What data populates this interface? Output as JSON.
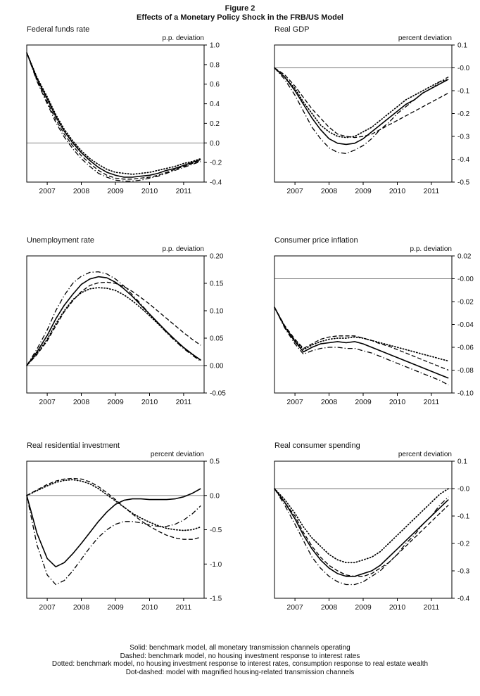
{
  "figure": {
    "title_line1": "Figure 2",
    "title_line2": "Effects of a Monetary Policy Shock in the FRB/US Model"
  },
  "legend": {
    "lines": [
      "Solid: benchmark model, all monetary transmission channels operating",
      "Dashed: benchmark model, no housing investment response to interest rates",
      "Dotted: benchmark model, no housing investment response to interest rates, consumption response to real estate wealth",
      "Dot-dashed: model with magnified housing-related transmission channels"
    ]
  },
  "chart_data": [
    {
      "type": "line",
      "title": "Federal funds rate",
      "ylabel": "p.p. deviation",
      "xlabel": "",
      "xlim": [
        2006.4,
        2011.6
      ],
      "ylim": [
        -0.4,
        1.0
      ],
      "yticks": [
        1.0,
        0.8,
        0.6,
        0.4,
        0.2,
        0.0,
        -0.2,
        -0.4
      ],
      "ytick_labels": [
        "1.0",
        "0.8",
        "0.6",
        "0.4",
        "0.2",
        "0.0",
        "-0.2",
        "-0.4"
      ],
      "xticks": [
        2007,
        2008,
        2009,
        2010,
        2011
      ],
      "xtick_labels": [
        "2007",
        "2008",
        "2009",
        "2010",
        "2011"
      ],
      "zero_line": 0.0,
      "x": [
        2006.4,
        2006.7,
        2007,
        2007.25,
        2007.5,
        2007.75,
        2008,
        2008.25,
        2008.5,
        2008.75,
        2009,
        2009.25,
        2009.5,
        2009.75,
        2010,
        2010.25,
        2010.5,
        2010.75,
        2011,
        2011.25,
        2011.5
      ],
      "series": [
        {
          "name": "solid",
          "style": "solid",
          "values": [
            0.92,
            0.66,
            0.45,
            0.27,
            0.12,
            0.0,
            -0.1,
            -0.18,
            -0.25,
            -0.3,
            -0.33,
            -0.35,
            -0.35,
            -0.34,
            -0.33,
            -0.31,
            -0.28,
            -0.26,
            -0.23,
            -0.2,
            -0.17
          ]
        },
        {
          "name": "dashed",
          "style": "dashed",
          "values": [
            0.92,
            0.64,
            0.42,
            0.24,
            0.09,
            -0.03,
            -0.13,
            -0.21,
            -0.28,
            -0.33,
            -0.36,
            -0.37,
            -0.37,
            -0.36,
            -0.35,
            -0.33,
            -0.3,
            -0.27,
            -0.24,
            -0.21,
            -0.18
          ]
        },
        {
          "name": "dotted",
          "style": "dotted",
          "values": [
            0.92,
            0.67,
            0.47,
            0.29,
            0.14,
            0.02,
            -0.08,
            -0.16,
            -0.22,
            -0.27,
            -0.3,
            -0.31,
            -0.32,
            -0.31,
            -0.3,
            -0.28,
            -0.26,
            -0.24,
            -0.21,
            -0.19,
            -0.16
          ]
        },
        {
          "name": "dot-dashed",
          "style": "dot-dashed",
          "values": [
            0.92,
            0.63,
            0.4,
            0.21,
            0.06,
            -0.06,
            -0.16,
            -0.24,
            -0.31,
            -0.35,
            -0.38,
            -0.39,
            -0.39,
            -0.38,
            -0.36,
            -0.34,
            -0.31,
            -0.28,
            -0.25,
            -0.22,
            -0.19
          ]
        }
      ]
    },
    {
      "type": "line",
      "title": "Real GDP",
      "ylabel": "percent deviation",
      "xlabel": "",
      "xlim": [
        2006.4,
        2011.6
      ],
      "ylim": [
        -0.5,
        0.1
      ],
      "yticks": [
        0.1,
        0.0,
        -0.1,
        -0.2,
        -0.3,
        -0.4,
        -0.5
      ],
      "ytick_labels": [
        "0.1",
        "-0.0",
        "-0.1",
        "-0.2",
        "-0.3",
        "-0.4",
        "-0.5"
      ],
      "xticks": [
        2007,
        2008,
        2009,
        2010,
        2011
      ],
      "xtick_labels": [
        "2007",
        "2008",
        "2009",
        "2010",
        "2011"
      ],
      "zero_line": 0.0,
      "x": [
        2006.4,
        2006.7,
        2007,
        2007.25,
        2007.5,
        2007.75,
        2008,
        2008.25,
        2008.5,
        2008.75,
        2009,
        2009.25,
        2009.5,
        2009.75,
        2010,
        2010.25,
        2010.5,
        2010.75,
        2011,
        2011.25,
        2011.5
      ],
      "series": [
        {
          "name": "solid",
          "style": "solid",
          "values": [
            0,
            -0.04,
            -0.1,
            -0.16,
            -0.22,
            -0.27,
            -0.31,
            -0.33,
            -0.335,
            -0.33,
            -0.31,
            -0.28,
            -0.25,
            -0.22,
            -0.19,
            -0.16,
            -0.14,
            -0.11,
            -0.09,
            -0.07,
            -0.05
          ]
        },
        {
          "name": "dashed",
          "style": "dashed",
          "values": [
            0,
            -0.03,
            -0.08,
            -0.13,
            -0.18,
            -0.22,
            -0.26,
            -0.29,
            -0.3,
            -0.305,
            -0.3,
            -0.29,
            -0.27,
            -0.25,
            -0.23,
            -0.21,
            -0.19,
            -0.17,
            -0.15,
            -0.13,
            -0.11
          ]
        },
        {
          "name": "dotted",
          "style": "dotted",
          "values": [
            0,
            -0.04,
            -0.09,
            -0.15,
            -0.2,
            -0.25,
            -0.28,
            -0.3,
            -0.305,
            -0.3,
            -0.28,
            -0.26,
            -0.23,
            -0.2,
            -0.17,
            -0.14,
            -0.12,
            -0.1,
            -0.08,
            -0.06,
            -0.05
          ]
        },
        {
          "name": "dot-dashed",
          "style": "dot-dashed",
          "values": [
            0,
            -0.05,
            -0.12,
            -0.19,
            -0.26,
            -0.31,
            -0.35,
            -0.37,
            -0.375,
            -0.36,
            -0.34,
            -0.31,
            -0.27,
            -0.24,
            -0.2,
            -0.17,
            -0.14,
            -0.11,
            -0.09,
            -0.06,
            -0.04
          ]
        }
      ]
    },
    {
      "type": "line",
      "title": "Unemployment rate",
      "ylabel": "p.p. deviation",
      "xlabel": "",
      "xlim": [
        2006.4,
        2011.6
      ],
      "ylim": [
        -0.05,
        0.2
      ],
      "yticks": [
        0.2,
        0.15,
        0.1,
        0.05,
        0.0,
        -0.05
      ],
      "ytick_labels": [
        "0.20",
        "0.15",
        "0.10",
        "0.05",
        "0.00",
        "-0.05"
      ],
      "xticks": [
        2007,
        2008,
        2009,
        2010,
        2011
      ],
      "xtick_labels": [
        "2007",
        "2008",
        "2009",
        "2010",
        "2011"
      ],
      "zero_line": 0.0,
      "x": [
        2006.4,
        2006.7,
        2007,
        2007.25,
        2007.5,
        2007.75,
        2008,
        2008.25,
        2008.5,
        2008.75,
        2009,
        2009.25,
        2009.5,
        2009.75,
        2010,
        2010.25,
        2010.5,
        2010.75,
        2011,
        2011.25,
        2011.5
      ],
      "series": [
        {
          "name": "solid",
          "style": "solid",
          "values": [
            0,
            0.025,
            0.055,
            0.085,
            0.11,
            0.13,
            0.148,
            0.158,
            0.162,
            0.16,
            0.152,
            0.14,
            0.126,
            0.11,
            0.094,
            0.078,
            0.062,
            0.047,
            0.033,
            0.021,
            0.01
          ]
        },
        {
          "name": "dashed",
          "style": "dashed",
          "values": [
            0,
            0.02,
            0.045,
            0.072,
            0.098,
            0.118,
            0.135,
            0.146,
            0.151,
            0.152,
            0.15,
            0.144,
            0.135,
            0.124,
            0.112,
            0.099,
            0.086,
            0.073,
            0.06,
            0.048,
            0.037
          ]
        },
        {
          "name": "dotted",
          "style": "dotted",
          "values": [
            0,
            0.022,
            0.048,
            0.076,
            0.1,
            0.12,
            0.133,
            0.14,
            0.142,
            0.141,
            0.137,
            0.129,
            0.118,
            0.105,
            0.091,
            0.076,
            0.061,
            0.047,
            0.033,
            0.021,
            0.01
          ]
        },
        {
          "name": "dot-dashed",
          "style": "dot-dashed",
          "values": [
            0,
            0.03,
            0.065,
            0.1,
            0.128,
            0.15,
            0.163,
            0.17,
            0.171,
            0.167,
            0.158,
            0.145,
            0.129,
            0.112,
            0.094,
            0.077,
            0.06,
            0.045,
            0.031,
            0.019,
            0.008
          ]
        }
      ]
    },
    {
      "type": "line",
      "title": "Consumer price inflation",
      "ylabel": "p.p. deviation",
      "xlabel": "",
      "xlim": [
        2006.4,
        2011.6
      ],
      "ylim": [
        -0.1,
        0.02
      ],
      "yticks": [
        0.02,
        0.0,
        -0.02,
        -0.04,
        -0.06,
        -0.08,
        -0.1
      ],
      "ytick_labels": [
        "0.02",
        "-0.00",
        "-0.02",
        "-0.04",
        "-0.06",
        "-0.08",
        "-0.10"
      ],
      "xticks": [
        2007,
        2008,
        2009,
        2010,
        2011
      ],
      "xtick_labels": [
        "2007",
        "2008",
        "2009",
        "2010",
        "2011"
      ],
      "zero_line": 0.0,
      "x": [
        2006.4,
        2006.7,
        2007,
        2007.25,
        2007.5,
        2007.75,
        2008,
        2008.25,
        2008.5,
        2008.75,
        2009,
        2009.25,
        2009.5,
        2009.75,
        2010,
        2010.25,
        2010.5,
        2010.75,
        2011,
        2011.25,
        2011.5
      ],
      "series": [
        {
          "name": "solid",
          "style": "solid",
          "values": [
            -0.025,
            -0.042,
            -0.055,
            -0.064,
            -0.06,
            -0.057,
            -0.056,
            -0.055,
            -0.056,
            -0.055,
            -0.057,
            -0.06,
            -0.063,
            -0.066,
            -0.069,
            -0.072,
            -0.075,
            -0.078,
            -0.081,
            -0.084,
            -0.087
          ]
        },
        {
          "name": "dashed",
          "style": "dashed",
          "values": [
            -0.025,
            -0.041,
            -0.053,
            -0.061,
            -0.057,
            -0.053,
            -0.051,
            -0.05,
            -0.05,
            -0.05,
            -0.052,
            -0.054,
            -0.057,
            -0.059,
            -0.062,
            -0.065,
            -0.068,
            -0.071,
            -0.074,
            -0.077,
            -0.08
          ]
        },
        {
          "name": "dotted",
          "style": "dotted",
          "values": [
            -0.025,
            -0.042,
            -0.054,
            -0.062,
            -0.058,
            -0.055,
            -0.053,
            -0.052,
            -0.052,
            -0.051,
            -0.052,
            -0.054,
            -0.056,
            -0.058,
            -0.06,
            -0.062,
            -0.064,
            -0.066,
            -0.068,
            -0.07,
            -0.072
          ]
        },
        {
          "name": "dot-dashed",
          "style": "dot-dashed",
          "values": [
            -0.025,
            -0.043,
            -0.057,
            -0.066,
            -0.063,
            -0.061,
            -0.06,
            -0.06,
            -0.061,
            -0.061,
            -0.063,
            -0.065,
            -0.068,
            -0.071,
            -0.074,
            -0.077,
            -0.08,
            -0.083,
            -0.086,
            -0.089,
            -0.093
          ]
        }
      ]
    },
    {
      "type": "line",
      "title": "Real residential investment",
      "ylabel": "percent deviation",
      "xlabel": "",
      "xlim": [
        2006.4,
        2011.6
      ],
      "ylim": [
        -1.5,
        0.5
      ],
      "yticks": [
        0.5,
        0.0,
        -0.5,
        -1.0,
        -1.5
      ],
      "ytick_labels": [
        "0.5",
        "0.0",
        "-0.5",
        "-1.0",
        "-1.5"
      ],
      "xticks": [
        2007,
        2008,
        2009,
        2010,
        2011
      ],
      "xtick_labels": [
        "2007",
        "2008",
        "2009",
        "2010",
        "2011"
      ],
      "zero_line": 0.0,
      "x": [
        2006.4,
        2006.7,
        2007,
        2007.25,
        2007.5,
        2007.75,
        2008,
        2008.25,
        2008.5,
        2008.75,
        2009,
        2009.25,
        2009.5,
        2009.75,
        2010,
        2010.25,
        2010.5,
        2010.75,
        2011,
        2011.25,
        2011.5
      ],
      "series": [
        {
          "name": "solid",
          "style": "solid",
          "values": [
            0,
            -0.55,
            -0.92,
            -1.04,
            -0.98,
            -0.85,
            -0.7,
            -0.54,
            -0.38,
            -0.24,
            -0.13,
            -0.07,
            -0.05,
            -0.05,
            -0.06,
            -0.06,
            -0.06,
            -0.05,
            -0.02,
            0.03,
            0.1
          ]
        },
        {
          "name": "dashed",
          "style": "dashed",
          "values": [
            0,
            0.08,
            0.16,
            0.21,
            0.24,
            0.25,
            0.24,
            0.2,
            0.13,
            0.04,
            -0.06,
            -0.17,
            -0.27,
            -0.37,
            -0.45,
            -0.52,
            -0.58,
            -0.62,
            -0.64,
            -0.64,
            -0.61
          ]
        },
        {
          "name": "dotted",
          "style": "dotted",
          "values": [
            0,
            0.07,
            0.14,
            0.19,
            0.22,
            0.23,
            0.21,
            0.17,
            0.1,
            0.01,
            -0.08,
            -0.17,
            -0.26,
            -0.33,
            -0.39,
            -0.44,
            -0.48,
            -0.5,
            -0.51,
            -0.5,
            -0.46
          ]
        },
        {
          "name": "dot-dashed",
          "style": "dot-dashed",
          "values": [
            0,
            -0.72,
            -1.16,
            -1.3,
            -1.24,
            -1.1,
            -0.93,
            -0.76,
            -0.61,
            -0.5,
            -0.42,
            -0.38,
            -0.38,
            -0.4,
            -0.43,
            -0.45,
            -0.45,
            -0.42,
            -0.36,
            -0.27,
            -0.15
          ]
        }
      ]
    },
    {
      "type": "line",
      "title": "Real consumer spending",
      "ylabel": "percent deviation",
      "xlabel": "",
      "xlim": [
        2006.4,
        2011.6
      ],
      "ylim": [
        -0.4,
        0.1
      ],
      "yticks": [
        0.1,
        0.0,
        -0.1,
        -0.2,
        -0.3,
        -0.4
      ],
      "ytick_labels": [
        "0.1",
        "-0.0",
        "-0.1",
        "-0.2",
        "-0.3",
        "-0.4"
      ],
      "xticks": [
        2007,
        2008,
        2009,
        2010,
        2011
      ],
      "xtick_labels": [
        "2007",
        "2008",
        "2009",
        "2010",
        "2011"
      ],
      "zero_line": 0.0,
      "x": [
        2006.4,
        2006.7,
        2007,
        2007.25,
        2007.5,
        2007.75,
        2008,
        2008.25,
        2008.5,
        2008.75,
        2009,
        2009.25,
        2009.5,
        2009.75,
        2010,
        2010.25,
        2010.5,
        2010.75,
        2011,
        2011.25,
        2011.5
      ],
      "series": [
        {
          "name": "solid",
          "style": "solid",
          "values": [
            0,
            -0.05,
            -0.11,
            -0.17,
            -0.22,
            -0.26,
            -0.29,
            -0.31,
            -0.32,
            -0.32,
            -0.31,
            -0.3,
            -0.28,
            -0.25,
            -0.22,
            -0.19,
            -0.16,
            -0.13,
            -0.1,
            -0.07,
            -0.04
          ]
        },
        {
          "name": "dashed",
          "style": "dashed",
          "values": [
            0,
            -0.05,
            -0.1,
            -0.16,
            -0.21,
            -0.25,
            -0.28,
            -0.3,
            -0.315,
            -0.32,
            -0.32,
            -0.31,
            -0.29,
            -0.27,
            -0.24,
            -0.21,
            -0.18,
            -0.15,
            -0.12,
            -0.09,
            -0.06
          ]
        },
        {
          "name": "dotted",
          "style": "dotted",
          "values": [
            0,
            -0.04,
            -0.09,
            -0.14,
            -0.18,
            -0.21,
            -0.24,
            -0.26,
            -0.27,
            -0.27,
            -0.26,
            -0.25,
            -0.23,
            -0.2,
            -0.17,
            -0.14,
            -0.11,
            -0.08,
            -0.05,
            -0.02,
            0.0
          ]
        },
        {
          "name": "dot-dashed",
          "style": "dot-dashed",
          "values": [
            0,
            -0.06,
            -0.13,
            -0.19,
            -0.25,
            -0.29,
            -0.32,
            -0.34,
            -0.35,
            -0.35,
            -0.34,
            -0.32,
            -0.3,
            -0.27,
            -0.24,
            -0.2,
            -0.17,
            -0.13,
            -0.1,
            -0.06,
            -0.03
          ]
        }
      ]
    }
  ]
}
